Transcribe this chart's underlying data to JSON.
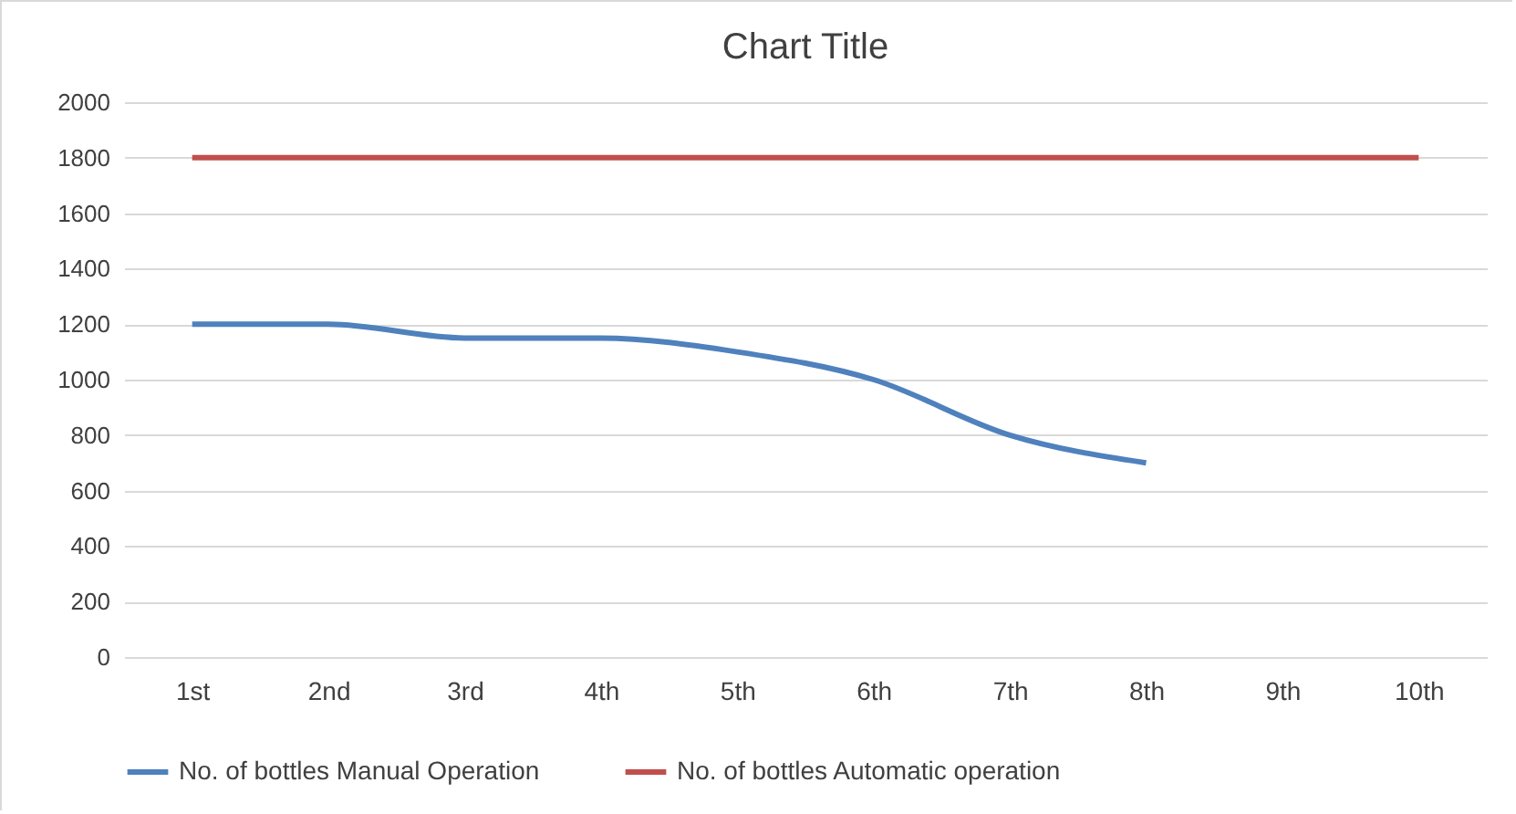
{
  "chart_data": {
    "type": "line",
    "title": "Chart Title",
    "categories": [
      "1st",
      "2nd",
      "3rd",
      "4th",
      "5th",
      "6th",
      "7th",
      "8th",
      "9th",
      "10th"
    ],
    "series": [
      {
        "name": "No. of bottles Manual Operation",
        "color": "#4f81bd",
        "values": [
          1200,
          1200,
          1150,
          1150,
          1100,
          1000,
          800,
          700,
          null,
          null
        ]
      },
      {
        "name": "No. of bottles Automatic operation",
        "color": "#c0504d",
        "values": [
          1800,
          1800,
          1800,
          1800,
          1800,
          1800,
          1800,
          1800,
          1800,
          1800
        ]
      }
    ],
    "ylim": [
      0,
      2000
    ],
    "yticks": [
      0,
      200,
      400,
      600,
      800,
      1000,
      1200,
      1400,
      1600,
      1800,
      2000
    ],
    "grid": "y",
    "legend": "bottom",
    "marker": "none",
    "line_style": "solid"
  }
}
